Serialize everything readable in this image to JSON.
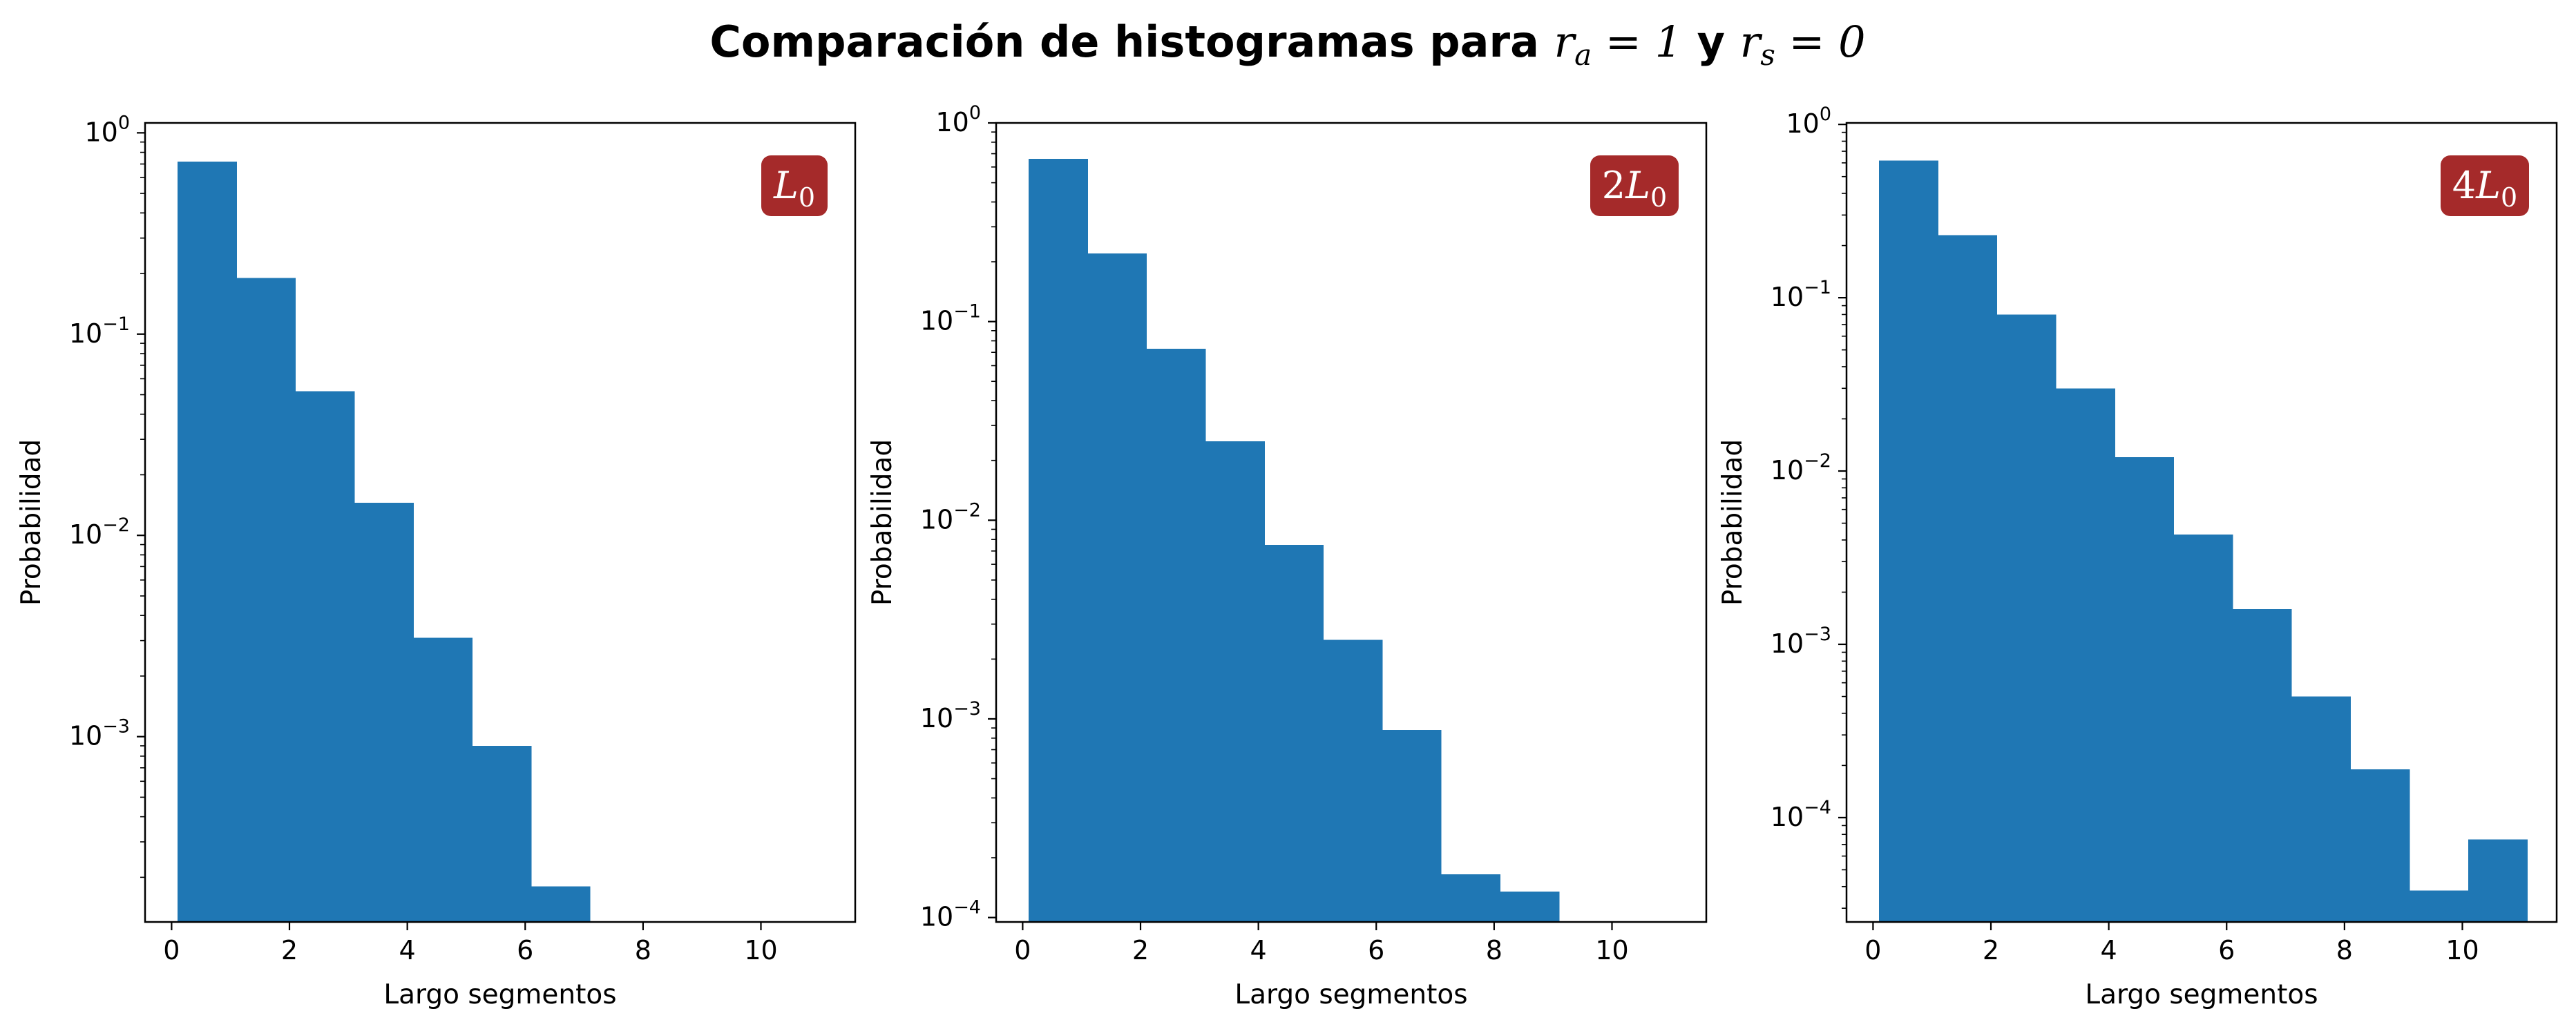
{
  "title": {
    "prefix": "Comparación de histogramas para ",
    "var1": "r",
    "sub1": "a",
    "eq1": " = 1",
    "mid": " y ",
    "var2": "r",
    "sub2": "s",
    "eq2": " = 0"
  },
  "colors": {
    "bar": "#1f77b4",
    "badge": "#a52a2a",
    "badge_text": "#ffffff",
    "axes": "#000000"
  },
  "chart_data": [
    {
      "type": "bar",
      "panel_label": "L",
      "panel_label_sub": "0",
      "panel_label_prefix": "",
      "xlabel": "Largo segmentos",
      "ylabel": "Probabilidad",
      "yscale": "log",
      "xlim": [
        -0.45,
        11.6
      ],
      "ylim": [
        0.00012,
        1.12
      ],
      "xticks": [
        0,
        2,
        4,
        6,
        8,
        10
      ],
      "yticks": [
        {
          "value": 1,
          "base": "10",
          "exp": "0"
        },
        {
          "value": 0.1,
          "base": "10",
          "exp": "−1"
        },
        {
          "value": 0.01,
          "base": "10",
          "exp": "−2"
        },
        {
          "value": 0.001,
          "base": "10",
          "exp": "−3"
        }
      ],
      "bin_edges": [
        0.1,
        1.1,
        2.1,
        3.1,
        4.1,
        5.1,
        6.1,
        7.1,
        8.1,
        9.1,
        10.1,
        11.1
      ],
      "values": [
        0.72,
        0.19,
        0.052,
        0.0145,
        0.0031,
        0.0009,
        0.00018,
        0,
        0,
        0,
        0
      ],
      "legend_position": "top-right",
      "grid": false
    },
    {
      "type": "bar",
      "panel_label": "L",
      "panel_label_sub": "0",
      "panel_label_prefix": "2",
      "xlabel": "Largo segmentos",
      "ylabel": "Probabilidad",
      "yscale": "log",
      "xlim": [
        -0.45,
        11.6
      ],
      "ylim": [
        9.5e-05,
        1.0
      ],
      "xticks": [
        0,
        2,
        4,
        6,
        8,
        10
      ],
      "yticks": [
        {
          "value": 1,
          "base": "10",
          "exp": "0"
        },
        {
          "value": 0.1,
          "base": "10",
          "exp": "−1"
        },
        {
          "value": 0.01,
          "base": "10",
          "exp": "−2"
        },
        {
          "value": 0.001,
          "base": "10",
          "exp": "−3"
        },
        {
          "value": 0.0001,
          "base": "10",
          "exp": "−4"
        }
      ],
      "bin_edges": [
        0.1,
        1.1,
        2.1,
        3.1,
        4.1,
        5.1,
        6.1,
        7.1,
        8.1,
        9.1,
        10.1,
        11.1
      ],
      "values": [
        0.66,
        0.22,
        0.073,
        0.025,
        0.0075,
        0.0025,
        0.00088,
        0.000165,
        0.000135,
        0,
        0
      ],
      "legend_position": "top-right",
      "grid": false
    },
    {
      "type": "bar",
      "panel_label": "L",
      "panel_label_sub": "0",
      "panel_label_prefix": "4",
      "xlabel": "Largo segmentos",
      "ylabel": "Probabilidad",
      "yscale": "log",
      "xlim": [
        -0.45,
        11.6
      ],
      "ylim": [
        2.5e-05,
        1.02
      ],
      "xticks": [
        0,
        2,
        4,
        6,
        8,
        10
      ],
      "yticks": [
        {
          "value": 1,
          "base": "10",
          "exp": "0"
        },
        {
          "value": 0.1,
          "base": "10",
          "exp": "−1"
        },
        {
          "value": 0.01,
          "base": "10",
          "exp": "−2"
        },
        {
          "value": 0.001,
          "base": "10",
          "exp": "−3"
        },
        {
          "value": 0.0001,
          "base": "10",
          "exp": "−4"
        }
      ],
      "bin_edges": [
        0.1,
        1.1,
        2.1,
        3.1,
        4.1,
        5.1,
        6.1,
        7.1,
        8.1,
        9.1,
        10.1,
        11.1
      ],
      "values": [
        0.62,
        0.23,
        0.08,
        0.03,
        0.012,
        0.0043,
        0.0016,
        0.0005,
        0.00019,
        3.8e-05,
        7.5e-05
      ],
      "legend_position": "top-right",
      "grid": false
    }
  ]
}
